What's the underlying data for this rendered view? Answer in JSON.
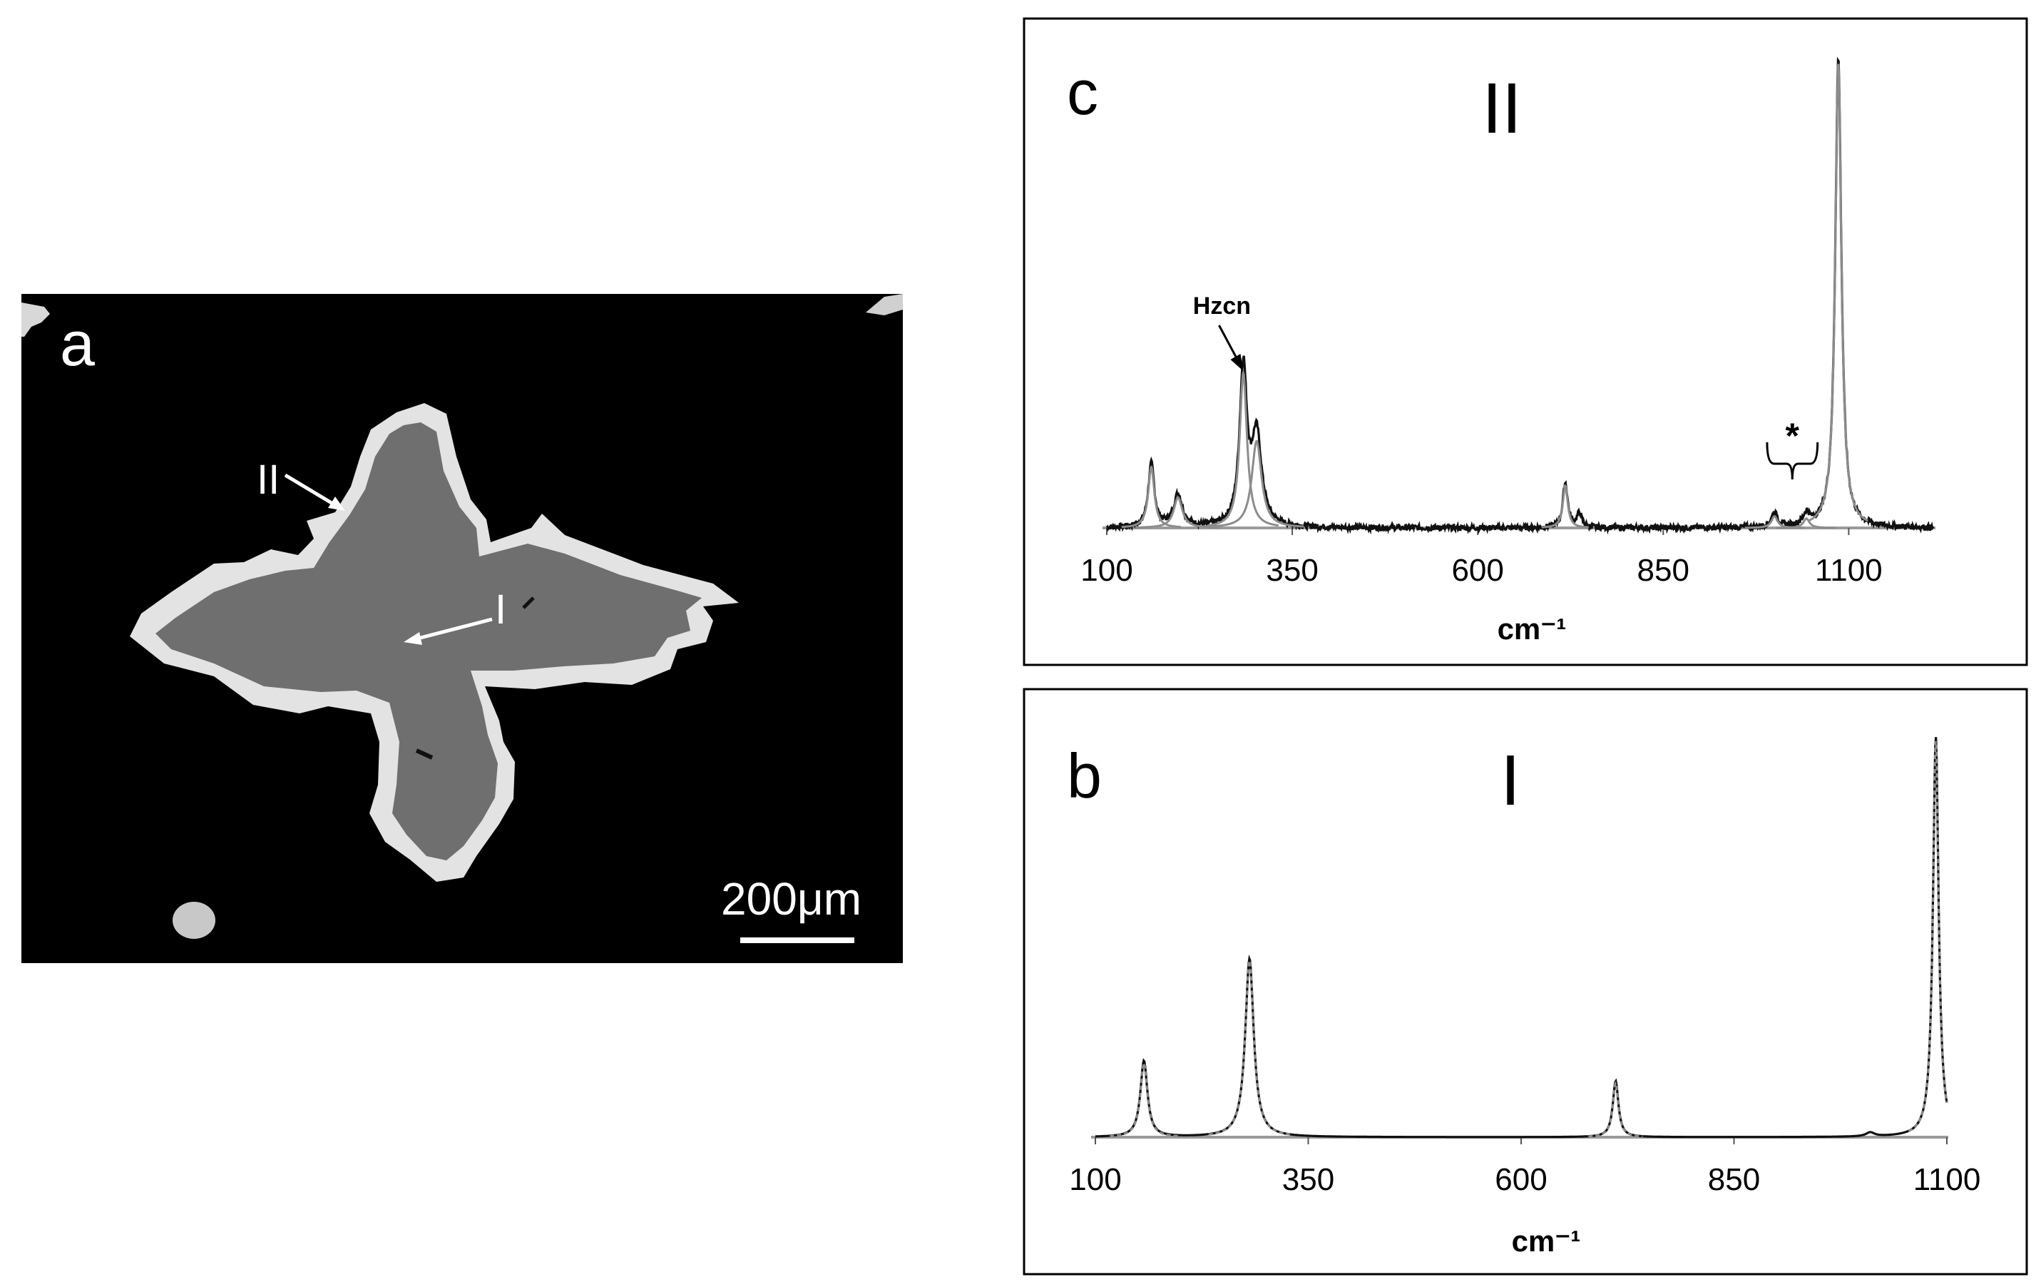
{
  "micrograph": {
    "panel_label": "a",
    "marker_outer": "II",
    "marker_inner": "I",
    "scale_bar": "200μm"
  },
  "chart_data": [
    {
      "type": "line",
      "panel_label": "c",
      "region_label": "II",
      "xlabel": "cm⁻¹",
      "ylabel": "",
      "xlim": [
        100,
        1215
      ],
      "ylim": [
        0,
        1
      ],
      "x_ticks": [
        "100",
        "350",
        "600",
        "850",
        "1100"
      ],
      "grid": false,
      "annotations": [
        {
          "text": "Hzcn",
          "x": 284
        },
        {
          "text": "*",
          "x": 1023
        }
      ],
      "series": [
        {
          "style": "measured (black)",
          "peaks": [
            {
              "center": 160,
              "height": 0.135,
              "width": 5
            },
            {
              "center": 196,
              "height": 0.07,
              "width": 7
            },
            {
              "center": 284,
              "height": 0.335,
              "width": 6
            },
            {
              "center": 302,
              "height": 0.19,
              "width": 8
            },
            {
              "center": 718,
              "height": 0.095,
              "width": 4
            },
            {
              "center": 737,
              "height": 0.03,
              "width": 4
            },
            {
              "center": 1000,
              "height": 0.03,
              "width": 5
            },
            {
              "center": 1043,
              "height": 0.025,
              "width": 5
            },
            {
              "center": 1086,
              "height": 1.0,
              "width": 5
            }
          ]
        },
        {
          "style": "fit components (grey)",
          "peaks": [
            {
              "center": 160,
              "height": 0.13,
              "width": 5
            },
            {
              "center": 196,
              "height": 0.065,
              "width": 7
            },
            {
              "center": 284,
              "height": 0.33,
              "width": 6
            },
            {
              "center": 302,
              "height": 0.185,
              "width": 8
            },
            {
              "center": 718,
              "height": 0.09,
              "width": 4
            },
            {
              "center": 1000,
              "height": 0.025,
              "width": 5
            },
            {
              "center": 1043,
              "height": 0.02,
              "width": 5
            },
            {
              "center": 1086,
              "height": 0.99,
              "width": 5
            }
          ]
        }
      ]
    },
    {
      "type": "line",
      "panel_label": "b",
      "region_label": "I",
      "xlabel": "cm⁻¹",
      "ylabel": "",
      "xlim": [
        100,
        1100
      ],
      "ylim": [
        0,
        1
      ],
      "x_ticks": [
        "100",
        "350",
        "600",
        "850",
        "1100"
      ],
      "grid": false,
      "series": [
        {
          "style": "measured (black)",
          "peaks": [
            {
              "center": 157,
              "height": 0.19,
              "width": 5
            },
            {
              "center": 281,
              "height": 0.445,
              "width": 6
            },
            {
              "center": 711,
              "height": 0.14,
              "width": 4
            },
            {
              "center": 1010,
              "height": 0.01,
              "width": 6
            },
            {
              "center": 1087,
              "height": 1.0,
              "width": 4
            }
          ]
        },
        {
          "style": "fit (grey dashed)",
          "peaks": [
            {
              "center": 157,
              "height": 0.185,
              "width": 5
            },
            {
              "center": 281,
              "height": 0.44,
              "width": 6
            },
            {
              "center": 711,
              "height": 0.135,
              "width": 4
            },
            {
              "center": 1087,
              "height": 0.99,
              "width": 4
            }
          ]
        }
      ]
    }
  ]
}
